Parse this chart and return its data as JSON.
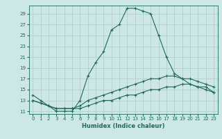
{
  "xlabel": "Humidex (Indice chaleur)",
  "bg_color": "#cde8e4",
  "line_color": "#1a6b5a",
  "grid_color": "#aaccc8",
  "line1_x": [
    0,
    1,
    2,
    3,
    4,
    5,
    6,
    7,
    8,
    9,
    10,
    11,
    12,
    13,
    14,
    15,
    16,
    17,
    18,
    19,
    20,
    21,
    22,
    23
  ],
  "line1_y": [
    14,
    13,
    12,
    11,
    11,
    11,
    13,
    17.5,
    20,
    22,
    26,
    27,
    30,
    30,
    29.5,
    29,
    25,
    21,
    18,
    17,
    16,
    15.5,
    15.5,
    14.5
  ],
  "line2_x": [
    0,
    1,
    2,
    3,
    4,
    5,
    6,
    7,
    8,
    9,
    10,
    11,
    12,
    13,
    14,
    15,
    16,
    17,
    18,
    19,
    20,
    21,
    22,
    23
  ],
  "line2_y": [
    13,
    12.5,
    12,
    11.5,
    11.5,
    11.5,
    12,
    13,
    13.5,
    14,
    14.5,
    15,
    15.5,
    16,
    16.5,
    17,
    17,
    17.5,
    17.5,
    17,
    17,
    16.5,
    16,
    15.5
  ],
  "line3_x": [
    0,
    1,
    2,
    3,
    4,
    5,
    6,
    7,
    8,
    9,
    10,
    11,
    12,
    13,
    14,
    15,
    16,
    17,
    18,
    19,
    20,
    21,
    22,
    23
  ],
  "line3_y": [
    13,
    12.5,
    12,
    11.5,
    11.5,
    11.5,
    11.5,
    12,
    12.5,
    13,
    13,
    13.5,
    14,
    14,
    14.5,
    15,
    15,
    15.5,
    15.5,
    16,
    16,
    15.5,
    15,
    14.5
  ],
  "ylim": [
    10.5,
    30.5
  ],
  "xlim": [
    -0.5,
    23.5
  ],
  "yticks": [
    11,
    13,
    15,
    17,
    19,
    21,
    23,
    25,
    27,
    29
  ],
  "xticks": [
    0,
    1,
    2,
    3,
    4,
    5,
    6,
    7,
    8,
    9,
    10,
    11,
    12,
    13,
    14,
    15,
    16,
    17,
    18,
    19,
    20,
    21,
    22,
    23
  ],
  "xlabel_fontsize": 6.0,
  "tick_fontsize": 5.0,
  "linewidth": 0.8,
  "markersize": 3.0
}
